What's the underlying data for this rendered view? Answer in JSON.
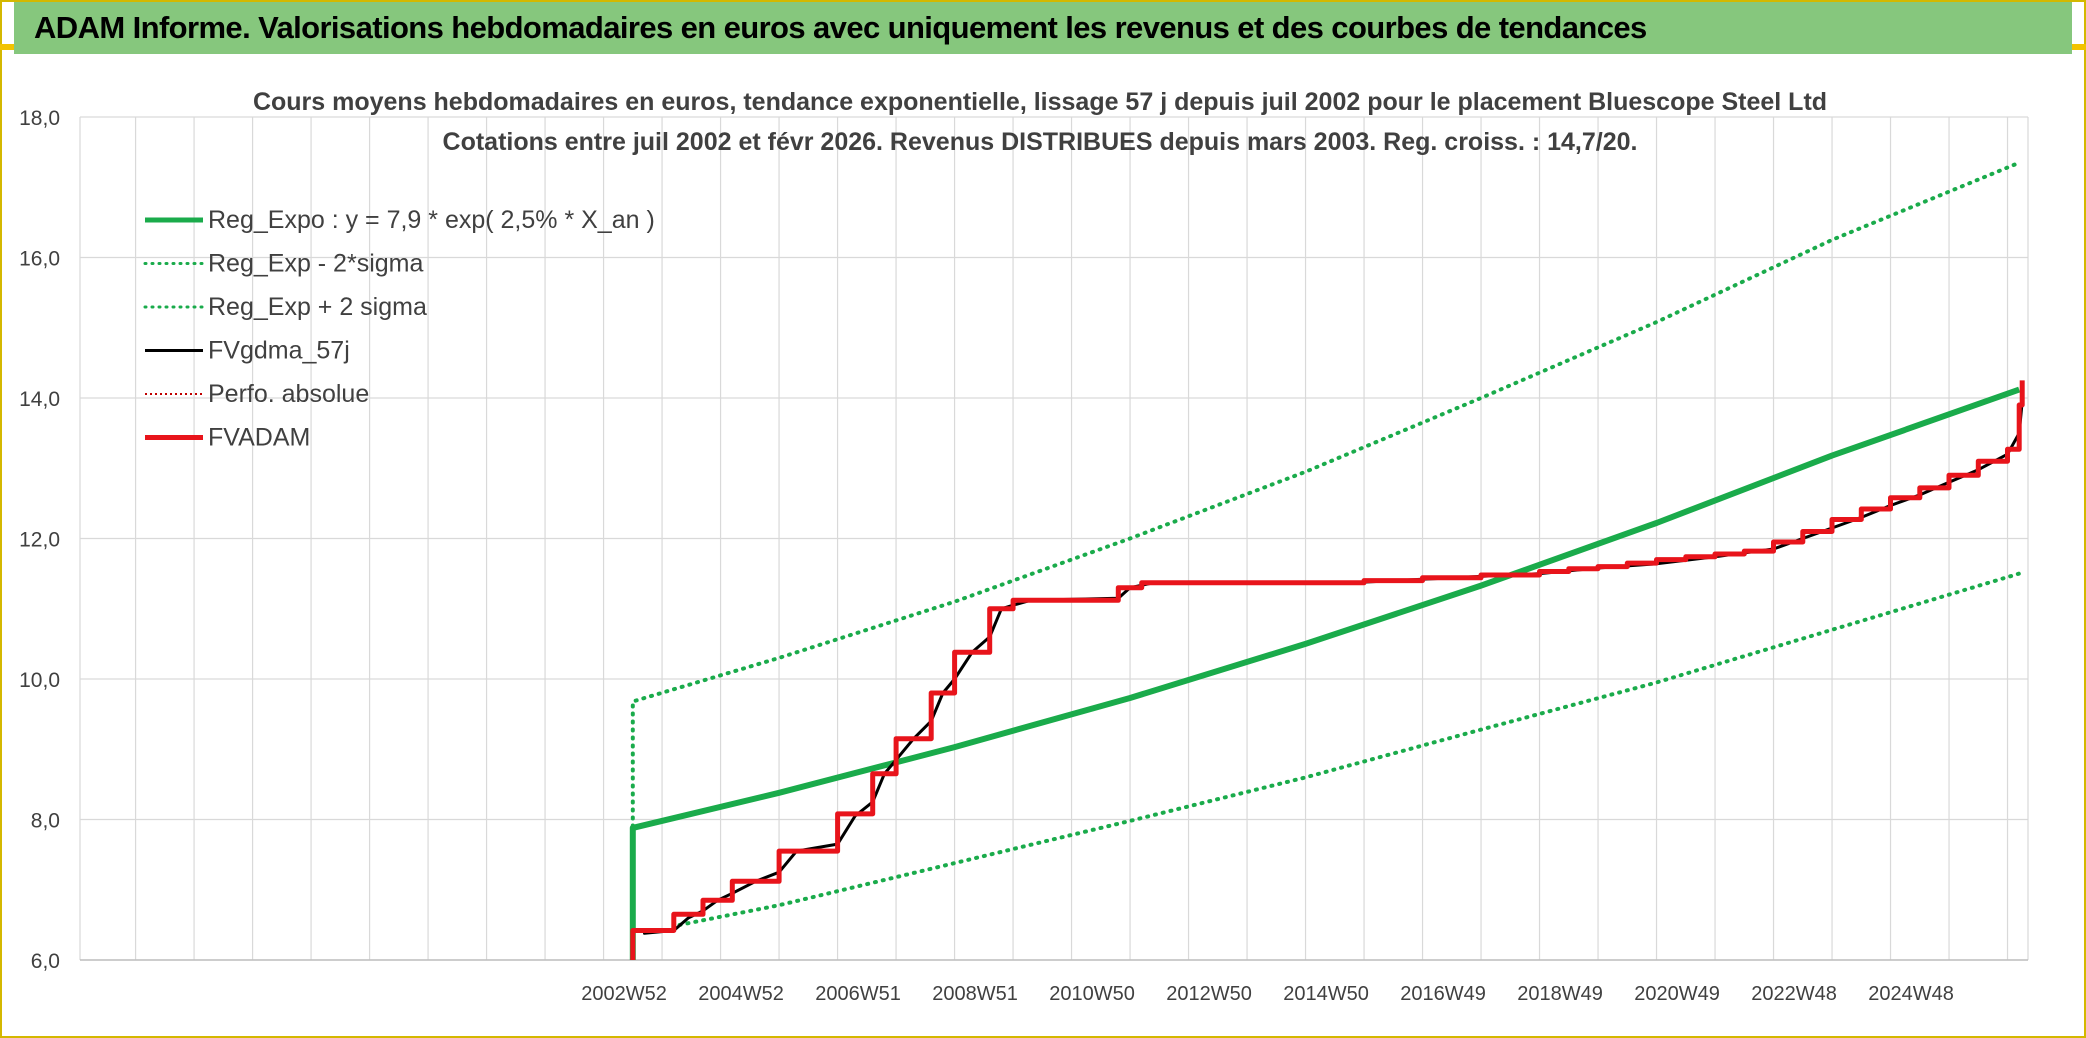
{
  "banner": {
    "title": "ADAM Informe. Valorisations hebdomadaires en euros avec uniquement les revenus et des courbes de tendances"
  },
  "colors": {
    "banner_bg": "#86c77d",
    "reg_expo": "#1aab4b",
    "fvgdma": "#000000",
    "fvadam": "#e8141b",
    "perfo": "#c00000",
    "grid": "#d9d9d9"
  },
  "chart_data": {
    "type": "line",
    "title": "Cours moyens hebdomadaires en euros, tendance exponentielle, lissage 57 j depuis juil 2002 pour le placement Bluescope Steel Ltd",
    "subtitle": "Cotations entre juil 2002 et févr 2026. Revenus DISTRIBUES depuis mars 2003. Reg. croiss. : 14,7/20.",
    "ylim": [
      6,
      18
    ],
    "yticks": [
      "6,0",
      "8,0",
      "10,0",
      "12,0",
      "14,0",
      "16,0",
      "18,0"
    ],
    "xlim": [
      1993.05,
      2026.35
    ],
    "xticks": [
      {
        "label": "2002W52",
        "x": 2003.0
      },
      {
        "label": "2004W52",
        "x": 2005.0
      },
      {
        "label": "2006W51",
        "x": 2007.0
      },
      {
        "label": "2008W51",
        "x": 2009.0
      },
      {
        "label": "2010W50",
        "x": 2011.0
      },
      {
        "label": "2012W50",
        "x": 2013.0
      },
      {
        "label": "2014W50",
        "x": 2015.0
      },
      {
        "label": "2016W49",
        "x": 2017.0
      },
      {
        "label": "2018W49",
        "x": 2019.0
      },
      {
        "label": "2020W49",
        "x": 2021.0
      },
      {
        "label": "2022W48",
        "x": 2023.0
      },
      {
        "label": "2024W48",
        "x": 2025.0
      }
    ],
    "grid": true,
    "legend_position": "top-left",
    "legend": [
      {
        "label": "Reg_Expo : y = 7,9 * exp( 2,5% *  X_an )",
        "color": "#1aab4b",
        "style": "solid",
        "width": 5
      },
      {
        "label": "Reg_Exp - 2*sigma",
        "color": "#1aab4b",
        "style": "dotted",
        "width": 3
      },
      {
        "label": "Reg_Exp + 2 sigma",
        "color": "#1aab4b",
        "style": "dotted",
        "width": 3
      },
      {
        "label": "FVgdma_57j",
        "color": "#000000",
        "style": "solid",
        "width": 3
      },
      {
        "label": "Perfo. absolue",
        "color": "#c00000",
        "style": "dotted",
        "width": 2
      },
      {
        "label": "FVADAM",
        "color": "#e8141b",
        "style": "solid",
        "width": 5
      }
    ],
    "series": [
      {
        "name": "Reg_Expo : y = 7,9 * exp( 2,5% *  X_an )",
        "key": "reg",
        "points": [
          [
            2002.5,
            6.0
          ],
          [
            2002.5,
            7.88
          ],
          [
            2005,
            8.38
          ],
          [
            2008,
            9.03
          ],
          [
            2011,
            9.73
          ],
          [
            2014,
            10.5
          ],
          [
            2017,
            11.33
          ],
          [
            2020,
            12.22
          ],
          [
            2023,
            13.18
          ],
          [
            2026.2,
            14.12
          ]
        ]
      },
      {
        "name": "Reg_Exp + 2 sigma",
        "key": "upper",
        "points": [
          [
            2002.5,
            7.9
          ],
          [
            2002.5,
            9.68
          ],
          [
            2005,
            10.3
          ],
          [
            2008,
            11.1
          ],
          [
            2011,
            12.0
          ],
          [
            2014,
            12.95
          ],
          [
            2017,
            14.0
          ],
          [
            2020,
            15.08
          ],
          [
            2023,
            16.25
          ],
          [
            2026.2,
            17.35
          ]
        ]
      },
      {
        "name": "Reg_Exp - 2*sigma",
        "key": "lower",
        "points": [
          [
            2003.3,
            6.5
          ],
          [
            2005,
            6.78
          ],
          [
            2008,
            7.38
          ],
          [
            2011,
            7.98
          ],
          [
            2014,
            8.6
          ],
          [
            2017,
            9.28
          ],
          [
            2020,
            9.95
          ],
          [
            2023,
            10.7
          ],
          [
            2026.2,
            11.5
          ]
        ]
      },
      {
        "name": "FVADAM",
        "key": "fvadam",
        "points": [
          [
            2002.5,
            6.0
          ],
          [
            2002.5,
            6.42
          ],
          [
            2003.2,
            6.42
          ],
          [
            2003.2,
            6.65
          ],
          [
            2003.7,
            6.65
          ],
          [
            2003.7,
            6.85
          ],
          [
            2004.2,
            6.85
          ],
          [
            2004.2,
            7.12
          ],
          [
            2005.0,
            7.12
          ],
          [
            2005.0,
            7.55
          ],
          [
            2006.0,
            7.55
          ],
          [
            2006.0,
            8.08
          ],
          [
            2006.6,
            8.08
          ],
          [
            2006.6,
            8.65
          ],
          [
            2007.0,
            8.65
          ],
          [
            2007.0,
            9.15
          ],
          [
            2007.6,
            9.15
          ],
          [
            2007.6,
            9.8
          ],
          [
            2008.0,
            9.8
          ],
          [
            2008.0,
            10.38
          ],
          [
            2008.6,
            10.38
          ],
          [
            2008.6,
            11.0
          ],
          [
            2009.0,
            11.0
          ],
          [
            2009.0,
            11.12
          ],
          [
            2010.8,
            11.12
          ],
          [
            2010.8,
            11.3
          ],
          [
            2011.2,
            11.3
          ],
          [
            2011.2,
            11.37
          ],
          [
            2015.0,
            11.37
          ],
          [
            2015.0,
            11.4
          ],
          [
            2016.0,
            11.4
          ],
          [
            2016.0,
            11.44
          ],
          [
            2017.0,
            11.44
          ],
          [
            2017.0,
            11.48
          ],
          [
            2018.0,
            11.48
          ],
          [
            2018.0,
            11.53
          ],
          [
            2018.5,
            11.53
          ],
          [
            2018.5,
            11.57
          ],
          [
            2019.0,
            11.57
          ],
          [
            2019.0,
            11.6
          ],
          [
            2019.5,
            11.6
          ],
          [
            2019.5,
            11.65
          ],
          [
            2020.0,
            11.65
          ],
          [
            2020.0,
            11.7
          ],
          [
            2020.5,
            11.7
          ],
          [
            2020.5,
            11.74
          ],
          [
            2021.0,
            11.74
          ],
          [
            2021.0,
            11.78
          ],
          [
            2021.5,
            11.78
          ],
          [
            2021.5,
            11.82
          ],
          [
            2022.0,
            11.82
          ],
          [
            2022.0,
            11.95
          ],
          [
            2022.5,
            11.95
          ],
          [
            2022.5,
            12.1
          ],
          [
            2023.0,
            12.1
          ],
          [
            2023.0,
            12.27
          ],
          [
            2023.5,
            12.27
          ],
          [
            2023.5,
            12.42
          ],
          [
            2024.0,
            12.42
          ],
          [
            2024.0,
            12.58
          ],
          [
            2024.5,
            12.58
          ],
          [
            2024.5,
            12.72
          ],
          [
            2025.0,
            12.72
          ],
          [
            2025.0,
            12.9
          ],
          [
            2025.5,
            12.9
          ],
          [
            2025.5,
            13.1
          ],
          [
            2026.0,
            13.1
          ],
          [
            2026.0,
            13.27
          ],
          [
            2026.2,
            13.27
          ],
          [
            2026.2,
            13.9
          ],
          [
            2026.25,
            13.9
          ],
          [
            2026.25,
            14.25
          ]
        ]
      },
      {
        "name": "FVgdma_57j",
        "key": "fvgdma",
        "points": [
          [
            2002.7,
            6.38
          ],
          [
            2003.2,
            6.42
          ],
          [
            2003.45,
            6.6
          ],
          [
            2003.7,
            6.7
          ],
          [
            2003.95,
            6.85
          ],
          [
            2004.2,
            6.95
          ],
          [
            2004.6,
            7.12
          ],
          [
            2005.0,
            7.25
          ],
          [
            2005.3,
            7.55
          ],
          [
            2006.0,
            7.65
          ],
          [
            2006.3,
            8.05
          ],
          [
            2006.6,
            8.25
          ],
          [
            2006.8,
            8.65
          ],
          [
            2007.0,
            8.85
          ],
          [
            2007.3,
            9.15
          ],
          [
            2007.6,
            9.4
          ],
          [
            2007.8,
            9.8
          ],
          [
            2008.0,
            10.0
          ],
          [
            2008.3,
            10.38
          ],
          [
            2008.6,
            10.6
          ],
          [
            2008.8,
            11.0
          ],
          [
            2009.0,
            11.05
          ],
          [
            2009.3,
            11.12
          ],
          [
            2010.8,
            11.15
          ],
          [
            2011.0,
            11.3
          ],
          [
            2011.4,
            11.37
          ],
          [
            2015.0,
            11.38
          ],
          [
            2016.0,
            11.42
          ],
          [
            2017.0,
            11.46
          ],
          [
            2018.0,
            11.5
          ],
          [
            2019.0,
            11.58
          ],
          [
            2020.0,
            11.64
          ],
          [
            2021.0,
            11.74
          ],
          [
            2022.0,
            11.85
          ],
          [
            2022.5,
            12.0
          ],
          [
            2023.0,
            12.15
          ],
          [
            2023.5,
            12.3
          ],
          [
            2024.0,
            12.47
          ],
          [
            2024.5,
            12.62
          ],
          [
            2025.0,
            12.8
          ],
          [
            2025.5,
            12.98
          ],
          [
            2026.0,
            13.2
          ],
          [
            2026.2,
            13.5
          ],
          [
            2026.25,
            13.95
          ]
        ]
      }
    ]
  }
}
